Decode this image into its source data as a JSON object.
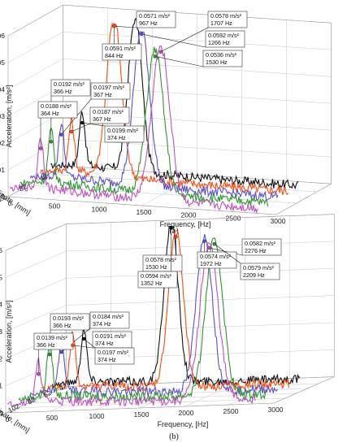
{
  "colors": {
    "black": "#111111",
    "orange": "#ff4a0a",
    "blue": "#5a4fd0",
    "green": "#2a9a2a",
    "magenta": "#c050c0"
  },
  "chart_data": [
    {
      "type": "line",
      "panel_label": "(a)",
      "xlabel": "Frequency, [Hz]",
      "ylabel": "Acceleration, [m/s²]",
      "zlabel": "Tool point coordinate, [mm]",
      "xlim": [
        0,
        3000
      ],
      "ylim": [
        0,
        0.06
      ],
      "x_ticks": [
        "0",
        "500",
        "1000",
        "1500",
        "2000",
        "2500",
        "3000"
      ],
      "y_ticks": [
        "0",
        "0.01",
        "0.02",
        "0.03",
        "0.04",
        "0.05",
        "0.06"
      ],
      "depth_ticks": [
        "122",
        "82",
        "42"
      ],
      "grid": true,
      "series": [
        {
          "color_key": "black",
          "peaks": [
            {
              "freq": 374,
              "acc": 0.0199
            },
            {
              "freq": 967,
              "acc": 0.0571
            }
          ]
        },
        {
          "color_key": "orange",
          "peaks": [
            {
              "freq": 367,
              "acc": 0.0187
            },
            {
              "freq": 844,
              "acc": 0.0591
            }
          ]
        },
        {
          "color_key": "blue",
          "peaks": [
            {
              "freq": 367,
              "acc": 0.0197
            },
            {
              "freq": 1266,
              "acc": 0.0592
            }
          ]
        },
        {
          "color_key": "green",
          "peaks": [
            {
              "freq": 366,
              "acc": 0.0192
            },
            {
              "freq": 1530,
              "acc": 0.0536
            }
          ]
        },
        {
          "color_key": "magenta",
          "peaks": [
            {
              "freq": 364,
              "acc": 0.0188
            },
            {
              "freq": 1707,
              "acc": 0.0578
            }
          ]
        }
      ],
      "annotations": [
        {
          "value": "0.0571 m/s²",
          "freq": "967 Hz"
        },
        {
          "value": "0.0578 m/s²",
          "freq": "1707 Hz"
        },
        {
          "value": "0.0592 m/s²",
          "freq": "1266 Hz"
        },
        {
          "value": "0.0591 m/s²",
          "freq": "844 Hz"
        },
        {
          "value": "0.0536 m/s²",
          "freq": "1530 Hz"
        },
        {
          "value": "0.0192 m/s²",
          "freq": "366 Hz"
        },
        {
          "value": "0.0197 m/s²",
          "freq": "367 Hz"
        },
        {
          "value": "0.0188 m/s²",
          "freq": "364 Hz"
        },
        {
          "value": "0.0187 m/s²",
          "freq": "367 Hz"
        },
        {
          "value": "0.0199 m/s²",
          "freq": "374 Hz"
        }
      ]
    },
    {
      "type": "line",
      "panel_label": "(b)",
      "xlabel": "Frequency, [Hz]",
      "ylabel": "Acceleration, [m/s²]",
      "zlabel": "Tool point coordinate, [mm]",
      "xlim": [
        0,
        3000
      ],
      "ylim": [
        0,
        0.06
      ],
      "x_ticks": [
        "0",
        "500",
        "1000",
        "1500",
        "2000",
        "2500",
        "3000"
      ],
      "y_ticks": [
        "0",
        "0.01",
        "0.02",
        "0.03",
        "0.04",
        "0.05",
        "0.06"
      ],
      "depth_ticks": [
        "122",
        "102",
        "82",
        "62",
        "42"
      ],
      "grid": true,
      "series": [
        {
          "color_key": "black",
          "peaks": [
            {
              "freq": 374,
              "acc": 0.0197
            },
            {
              "freq": 1352,
              "acc": 0.0594
            }
          ]
        },
        {
          "color_key": "orange",
          "peaks": [
            {
              "freq": 374,
              "acc": 0.0191
            },
            {
              "freq": 1530,
              "acc": 0.0578
            }
          ]
        },
        {
          "color_key": "blue",
          "peaks": [
            {
              "freq": 374,
              "acc": 0.0184
            },
            {
              "freq": 1972,
              "acc": 0.0574
            }
          ]
        },
        {
          "color_key": "green",
          "peaks": [
            {
              "freq": 366,
              "acc": 0.0193
            },
            {
              "freq": 2209,
              "acc": 0.0579
            }
          ]
        },
        {
          "color_key": "magenta",
          "peaks": [
            {
              "freq": 366,
              "acc": 0.0139
            },
            {
              "freq": 2276,
              "acc": 0.0582
            }
          ]
        }
      ],
      "annotations": [
        {
          "value": "0.0582 m/s²",
          "freq": "2276 Hz"
        },
        {
          "value": "0.0578 m/s²",
          "freq": "1530 Hz"
        },
        {
          "value": "0.0574 m/s²",
          "freq": "1972 Hz"
        },
        {
          "value": "0.0579 m/s²",
          "freq": "2209 Hz"
        },
        {
          "value": "0.0594 m/s²",
          "freq": "1352 Hz"
        },
        {
          "value": "0.0193 m/s²",
          "freq": "366 Hz"
        },
        {
          "value": "0.0184 m/s²",
          "freq": "374 Hz"
        },
        {
          "value": "0.0139 m/s²",
          "freq": "366 Hz"
        },
        {
          "value": "0.0191 m/s²",
          "freq": "374 Hz"
        },
        {
          "value": "0.0197 m/s²",
          "freq": "374 Hz"
        }
      ]
    }
  ]
}
